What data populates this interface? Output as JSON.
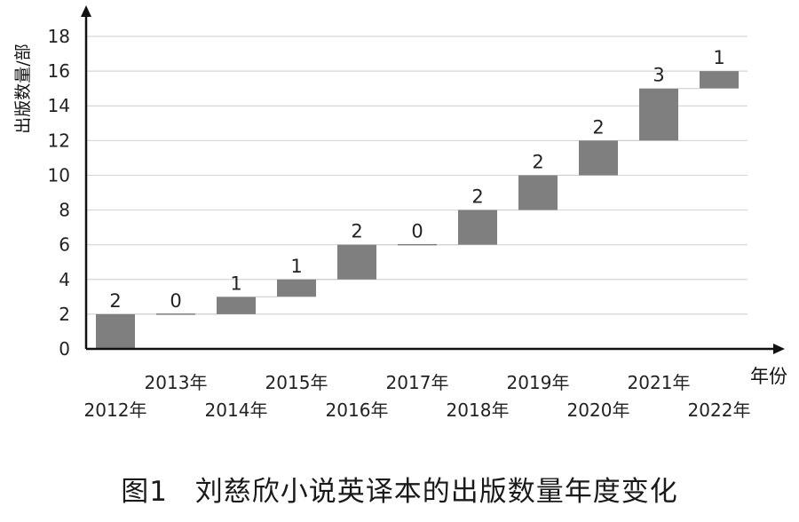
{
  "chart_data": {
    "type": "bar",
    "subtype": "waterfall",
    "categories": [
      "2012年",
      "2013年",
      "2014年",
      "2015年",
      "2016年",
      "2017年",
      "2018年",
      "2019年",
      "2020年",
      "2021年",
      "2022年"
    ],
    "values": [
      2,
      0,
      1,
      1,
      2,
      0,
      2,
      2,
      2,
      3,
      1
    ],
    "cumulative": [
      2,
      2,
      3,
      4,
      6,
      6,
      8,
      10,
      12,
      15,
      16
    ],
    "data_labels": [
      "2",
      "0",
      "1",
      "1",
      "2",
      "0",
      "2",
      "2",
      "2",
      "3",
      "1"
    ],
    "xlabel": "年份",
    "ylabel": "出版数量/部",
    "ylim": [
      0,
      18
    ],
    "yticks": [
      0,
      2,
      4,
      6,
      8,
      10,
      12,
      14,
      16,
      18
    ],
    "grid": true,
    "bar_color": "#7f7f7f"
  },
  "caption": {
    "label": "图1",
    "text": "刘慈欣小说英译本的出版数量年度变化"
  }
}
